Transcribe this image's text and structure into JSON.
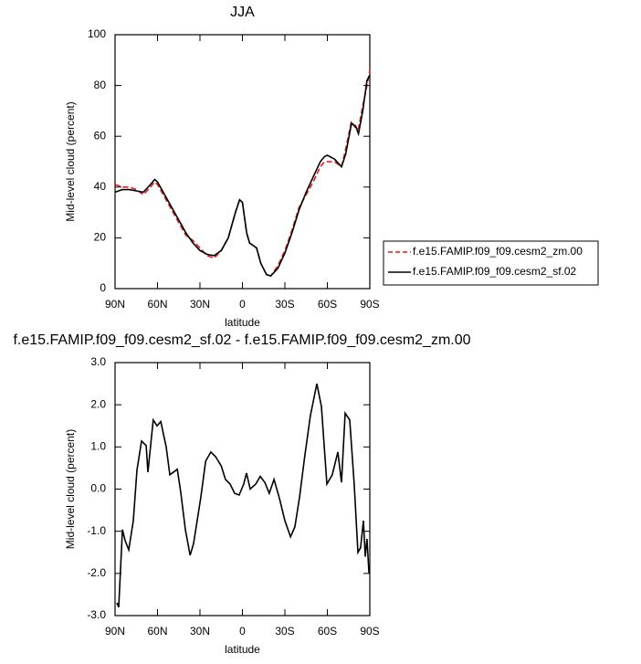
{
  "chart_data": [
    {
      "type": "line",
      "title": "JJA",
      "xlabel": "latitude",
      "ylabel": "Mid-level cloud (percent)",
      "x": [
        90,
        85,
        80,
        75,
        70,
        65,
        62,
        60,
        55,
        50,
        45,
        40,
        35,
        30,
        25,
        20,
        15,
        10,
        5,
        2,
        0,
        -3,
        -5,
        -10,
        -13,
        -17,
        -20,
        -25,
        -30,
        -35,
        -40,
        -45,
        -50,
        -55,
        -58,
        -60,
        -65,
        -70,
        -73,
        -77,
        -80,
        -82,
        -85,
        -88,
        -90
      ],
      "series": [
        {
          "name": "f.e15.FAMIP.f09_f09.cesm2_zm.00",
          "color": "#e41a1c",
          "line_style": "dashed",
          "values": [
            41,
            40,
            40,
            39,
            37,
            40,
            42,
            41,
            36,
            31,
            26,
            21,
            19,
            16,
            13,
            12,
            15,
            20,
            30,
            35,
            34,
            22,
            18,
            16,
            10,
            5.5,
            5,
            9,
            15,
            23,
            32,
            37,
            42,
            48,
            50,
            50,
            50,
            48,
            55,
            66,
            63,
            63,
            72,
            80,
            86
          ]
        },
        {
          "name": "f.e15.FAMIP.f09_f09.cesm2_sf.02",
          "color": "#000000",
          "line_style": "solid",
          "values": [
            38,
            39,
            39,
            38.5,
            38,
            41,
            43,
            42,
            37,
            32,
            27,
            22,
            18,
            15,
            13.5,
            13,
            15,
            20,
            30,
            35,
            34,
            22,
            18,
            16,
            10,
            5.5,
            5,
            8,
            14,
            22,
            31,
            38,
            44,
            50,
            52,
            52.5,
            51,
            48,
            53,
            65,
            64,
            61,
            70,
            82,
            84
          ]
        }
      ],
      "xlim": [
        90,
        -90
      ],
      "xticks": [
        {
          "value": 90,
          "label": "90N"
        },
        {
          "value": 60,
          "label": "60N"
        },
        {
          "value": 30,
          "label": "30N"
        },
        0,
        {
          "value": -30,
          "label": "30S"
        },
        {
          "value": -60,
          "label": "60S"
        },
        {
          "value": -90,
          "label": "90S"
        }
      ],
      "ylim": [
        0,
        100
      ],
      "yticks": [
        0,
        20,
        40,
        60,
        80,
        100
      ],
      "legend": "right"
    },
    {
      "type": "line",
      "title": "f.e15.FAMIP.f09_f09.cesm2_sf.02 - f.e15.FAMIP.f09_f09.cesm2_zm.00",
      "xlabel": "latitude",
      "ylabel": "Mid-level cloud (percent)",
      "x": [
        88.7,
        87.4,
        84.8,
        82.9,
        80.3,
        77.1,
        74.5,
        71.3,
        68,
        66.8,
        63,
        60.3,
        57.7,
        53.9,
        51.3,
        46,
        43.5,
        40.3,
        37,
        34.5,
        29.4,
        26,
        22.3,
        19,
        15,
        12,
        8.7,
        5.5,
        2.3,
        -0.9,
        -2.9,
        -5.5,
        -9.4,
        -12.6,
        -15.8,
        -19,
        -22.3,
        -26,
        -30,
        -34,
        -37,
        -40.3,
        -44,
        -48,
        -52.6,
        -55.8,
        -59.7,
        -63.5,
        -67.4,
        -70,
        -72.6,
        -75.8,
        -79,
        -81.6,
        -83.5,
        -85.5,
        -86.8,
        -88,
        -89.4
      ],
      "values": [
        -2.7,
        -2.8,
        -0.96,
        -1.22,
        -1.44,
        -0.75,
        0.45,
        1.14,
        1.03,
        0.4,
        1.64,
        1.5,
        1.6,
        1.0,
        0.34,
        0.47,
        -0.1,
        -0.96,
        -1.57,
        -1.29,
        -0.2,
        0.66,
        0.88,
        0.77,
        0.55,
        0.23,
        0.12,
        -0.1,
        -0.14,
        0.12,
        0.38,
        0.0,
        0.12,
        0.3,
        0.16,
        -0.1,
        0.23,
        -0.2,
        -0.75,
        -1.13,
        -0.9,
        -0.2,
        0.77,
        1.74,
        2.5,
        1.96,
        0.12,
        0.34,
        0.88,
        0.16,
        1.8,
        1.64,
        0.12,
        -1.5,
        -1.39,
        -0.75,
        -1.6,
        -1.18,
        -2.0
      ],
      "color": "#000000",
      "xlim": [
        90,
        -90
      ],
      "xticks": [
        {
          "value": 90,
          "label": "90N"
        },
        {
          "value": 60,
          "label": "60N"
        },
        {
          "value": 30,
          "label": "30N"
        },
        0,
        {
          "value": -30,
          "label": "30S"
        },
        {
          "value": -60,
          "label": "60S"
        },
        {
          "value": -90,
          "label": "90S"
        }
      ],
      "ylim": [
        -3,
        3
      ],
      "yticks": [
        {
          "value": -3,
          "label": "-3.0"
        },
        {
          "value": -2,
          "label": "-2.0"
        },
        {
          "value": -1,
          "label": "-1.0"
        },
        {
          "value": 0,
          "label": "0.0"
        },
        {
          "value": 1,
          "label": "1.0"
        },
        {
          "value": 2,
          "label": "2.0"
        },
        {
          "value": 3,
          "label": "3.0"
        }
      ]
    }
  ]
}
